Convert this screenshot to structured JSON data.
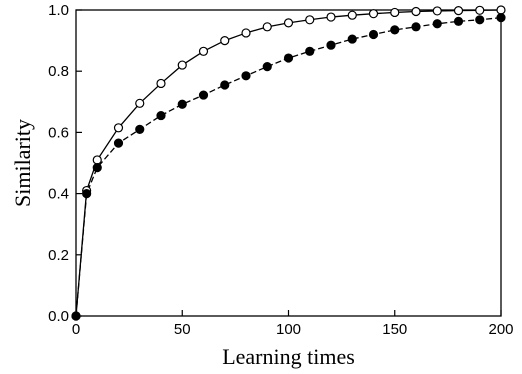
{
  "chart_data": {
    "type": "line",
    "title": "",
    "xlabel": "Learning times",
    "ylabel": "Similarity",
    "xlim": [
      0,
      200
    ],
    "ylim": [
      0.0,
      1.0
    ],
    "xticks": [
      0,
      50,
      100,
      150,
      200
    ],
    "yticks": [
      0.0,
      0.2,
      0.4,
      0.6,
      0.8,
      1.0
    ],
    "xtick_labels": [
      "0",
      "50",
      "100",
      "150",
      "200"
    ],
    "ytick_labels": [
      "0.0",
      "0.2",
      "0.4",
      "0.6",
      "0.8",
      "1.0"
    ],
    "grid": false,
    "legend": "none",
    "series": [
      {
        "marker": "open-circle",
        "line": "solid",
        "color": "#000000",
        "x": [
          0,
          5,
          10,
          20,
          30,
          40,
          50,
          60,
          70,
          80,
          90,
          100,
          110,
          120,
          130,
          140,
          150,
          160,
          170,
          180,
          190,
          200
        ],
        "y": [
          0.0,
          0.41,
          0.51,
          0.615,
          0.695,
          0.76,
          0.82,
          0.865,
          0.9,
          0.925,
          0.945,
          0.958,
          0.968,
          0.977,
          0.983,
          0.988,
          0.992,
          0.995,
          0.997,
          0.998,
          0.999,
          1.0
        ]
      },
      {
        "marker": "filled-circle",
        "line": "dashed",
        "color": "#000000",
        "x": [
          0,
          5,
          10,
          20,
          30,
          40,
          50,
          60,
          70,
          80,
          90,
          100,
          110,
          120,
          130,
          140,
          150,
          160,
          170,
          180,
          190,
          200
        ],
        "y": [
          0.0,
          0.4,
          0.485,
          0.565,
          0.61,
          0.655,
          0.692,
          0.722,
          0.755,
          0.785,
          0.815,
          0.843,
          0.865,
          0.885,
          0.905,
          0.92,
          0.935,
          0.945,
          0.955,
          0.963,
          0.968,
          0.975
        ]
      }
    ]
  }
}
